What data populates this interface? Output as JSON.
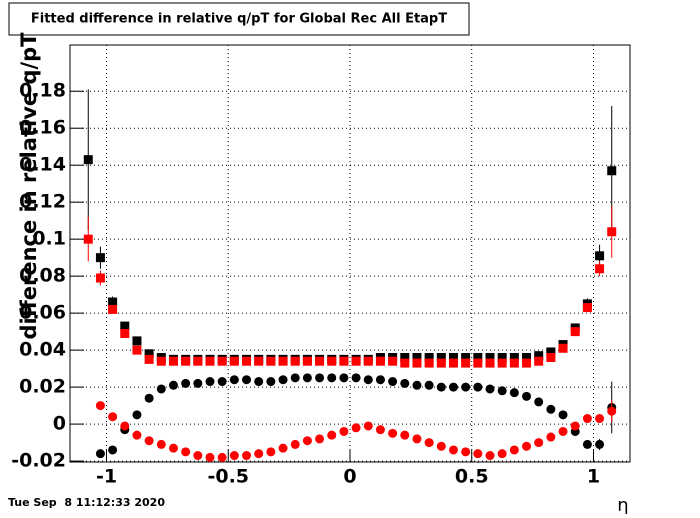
{
  "chart_data": {
    "type": "scatter",
    "title": "Fitted difference in relative q/pT  for Global Rec All EtapT",
    "ylabel": "difference in relative q/pT",
    "xlabel": "η",
    "date": "Tue Sep  8 11:12:33 2020",
    "grid": true,
    "xlim": [
      -1.15,
      1.15
    ],
    "ylim": [
      -0.0205,
      0.205
    ],
    "xticks": [
      -1,
      -0.5,
      0,
      0.5,
      1
    ],
    "yticks": [
      -0.02,
      0,
      0.02,
      0.04,
      0.06,
      0.08,
      0.1,
      0.12,
      0.14,
      0.16,
      0.18
    ],
    "x": [
      -1.075,
      -1.025,
      -0.975,
      -0.925,
      -0.875,
      -0.825,
      -0.775,
      -0.725,
      -0.675,
      -0.625,
      -0.575,
      -0.525,
      -0.475,
      -0.425,
      -0.375,
      -0.325,
      -0.275,
      -0.225,
      -0.175,
      -0.125,
      -0.075,
      -0.025,
      0.025,
      0.075,
      0.125,
      0.175,
      0.225,
      0.275,
      0.325,
      0.375,
      0.425,
      0.475,
      0.525,
      0.575,
      0.625,
      0.675,
      0.725,
      0.775,
      0.825,
      0.875,
      0.925,
      0.975,
      1.025,
      1.075
    ],
    "series": [
      {
        "color": "#000000",
        "marker": "square",
        "values": [
          0.143,
          0.09,
          0.066,
          0.053,
          0.045,
          0.038,
          0.036,
          0.035,
          0.035,
          0.035,
          0.035,
          0.035,
          0.035,
          0.035,
          0.035,
          0.035,
          0.035,
          0.035,
          0.035,
          0.035,
          0.035,
          0.035,
          0.035,
          0.035,
          0.036,
          0.036,
          0.036,
          0.036,
          0.036,
          0.036,
          0.036,
          0.036,
          0.036,
          0.036,
          0.036,
          0.036,
          0.036,
          0.037,
          0.039,
          0.043,
          0.052,
          0.065,
          0.091,
          0.137
        ],
        "errors": [
          0.038,
          0.006,
          0.003,
          0.002,
          0.002,
          0.001,
          0.001,
          0.001,
          0.001,
          0.001,
          0.001,
          0.001,
          0.001,
          0.001,
          0.001,
          0.001,
          0.001,
          0.001,
          0.001,
          0.001,
          0.001,
          0.001,
          0.001,
          0.001,
          0.001,
          0.001,
          0.001,
          0.001,
          0.001,
          0.001,
          0.001,
          0.001,
          0.001,
          0.001,
          0.001,
          0.001,
          0.001,
          0.001,
          0.001,
          0.002,
          0.002,
          0.003,
          0.006,
          0.035
        ]
      },
      {
        "color": "#ff0000",
        "marker": "square",
        "values": [
          0.1,
          0.079,
          0.062,
          0.049,
          0.04,
          0.035,
          0.034,
          0.034,
          0.034,
          0.034,
          0.034,
          0.034,
          0.034,
          0.034,
          0.034,
          0.034,
          0.034,
          0.034,
          0.034,
          0.034,
          0.034,
          0.034,
          0.034,
          0.034,
          0.034,
          0.034,
          0.033,
          0.033,
          0.033,
          0.033,
          0.033,
          0.033,
          0.033,
          0.033,
          0.033,
          0.033,
          0.033,
          0.034,
          0.036,
          0.041,
          0.05,
          0.063,
          0.084,
          0.104
        ],
        "errors": [
          0.012,
          0.004,
          0.002,
          0.002,
          0.001,
          0.001,
          0.001,
          0.001,
          0.001,
          0.001,
          0.001,
          0.001,
          0.001,
          0.001,
          0.001,
          0.001,
          0.001,
          0.001,
          0.001,
          0.001,
          0.001,
          0.001,
          0.001,
          0.001,
          0.001,
          0.001,
          0.001,
          0.001,
          0.001,
          0.001,
          0.001,
          0.001,
          0.001,
          0.001,
          0.001,
          0.001,
          0.001,
          0.001,
          0.001,
          0.001,
          0.002,
          0.002,
          0.004,
          0.014
        ]
      },
      {
        "color": "#000000",
        "marker": "circle",
        "values": [
          null,
          -0.016,
          -0.014,
          -0.003,
          0.005,
          0.014,
          0.019,
          0.021,
          0.022,
          0.022,
          0.023,
          0.023,
          0.024,
          0.024,
          0.023,
          0.023,
          0.024,
          0.025,
          0.025,
          0.025,
          0.025,
          0.025,
          0.025,
          0.024,
          0.024,
          0.023,
          0.022,
          0.021,
          0.021,
          0.02,
          0.02,
          0.02,
          0.02,
          0.019,
          0.018,
          0.017,
          0.015,
          0.012,
          0.008,
          0.005,
          -0.004,
          -0.011,
          -0.011,
          0.009
        ],
        "errors": [
          null,
          0.002,
          0.002,
          0.001,
          0.001,
          0.001,
          0.001,
          0.001,
          0.001,
          0.001,
          0.001,
          0.001,
          0.001,
          0.001,
          0.001,
          0.001,
          0.001,
          0.001,
          0.001,
          0.001,
          0.001,
          0.001,
          0.001,
          0.001,
          0.001,
          0.001,
          0.001,
          0.001,
          0.001,
          0.001,
          0.001,
          0.001,
          0.001,
          0.001,
          0.001,
          0.001,
          0.001,
          0.001,
          0.001,
          0.001,
          0.002,
          0.002,
          0.003,
          0.014
        ]
      },
      {
        "color": "#ff0000",
        "marker": "circle",
        "values": [
          null,
          0.01,
          0.004,
          -0.001,
          -0.006,
          -0.009,
          -0.011,
          -0.013,
          -0.015,
          -0.017,
          -0.018,
          -0.018,
          -0.017,
          -0.017,
          -0.016,
          -0.015,
          -0.013,
          -0.011,
          -0.009,
          -0.008,
          -0.006,
          -0.004,
          -0.002,
          -0.001,
          -0.003,
          -0.005,
          -0.006,
          -0.008,
          -0.01,
          -0.012,
          -0.014,
          -0.015,
          -0.016,
          -0.017,
          -0.016,
          -0.014,
          -0.012,
          -0.01,
          -0.007,
          -0.004,
          -0.001,
          0.003,
          0.003,
          0.007
        ],
        "errors": [
          null,
          0.001,
          0.001,
          0.001,
          0.001,
          0.001,
          0.001,
          0.001,
          0.001,
          0.001,
          0.001,
          0.001,
          0.001,
          0.001,
          0.001,
          0.001,
          0.001,
          0.001,
          0.001,
          0.001,
          0.001,
          0.001,
          0.001,
          0.001,
          0.001,
          0.001,
          0.001,
          0.001,
          0.001,
          0.001,
          0.001,
          0.001,
          0.001,
          0.001,
          0.001,
          0.001,
          0.001,
          0.001,
          0.001,
          0.001,
          0.001,
          0.001,
          0.002,
          0.006
        ]
      }
    ]
  }
}
